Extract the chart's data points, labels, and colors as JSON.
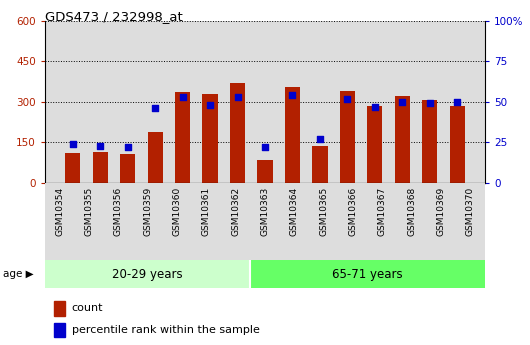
{
  "title": "GDS473 / 232998_at",
  "categories": [
    "GSM10354",
    "GSM10355",
    "GSM10356",
    "GSM10359",
    "GSM10360",
    "GSM10361",
    "GSM10362",
    "GSM10363",
    "GSM10364",
    "GSM10365",
    "GSM10366",
    "GSM10367",
    "GSM10368",
    "GSM10369",
    "GSM10370"
  ],
  "count_values": [
    110,
    115,
    105,
    190,
    335,
    330,
    370,
    85,
    355,
    135,
    340,
    285,
    320,
    305,
    285
  ],
  "percentile_values": [
    24,
    23,
    22,
    46,
    53,
    48,
    53,
    22,
    54,
    27,
    52,
    47,
    50,
    49,
    50
  ],
  "group1_label": "20-29 years",
  "group2_label": "65-71 years",
  "group1_count": 7,
  "group2_count": 8,
  "ylim_left": [
    0,
    600
  ],
  "ylim_right": [
    0,
    100
  ],
  "yticks_left": [
    0,
    150,
    300,
    450,
    600
  ],
  "yticks_right": [
    0,
    25,
    50,
    75,
    100
  ],
  "bar_color": "#B22000",
  "dot_color": "#0000CC",
  "group1_bg": "#CCFFCC",
  "group2_bg": "#66FF66",
  "plot_bg": "#DDDDDD",
  "legend_count_label": "count",
  "legend_percentile_label": "percentile rank within the sample"
}
